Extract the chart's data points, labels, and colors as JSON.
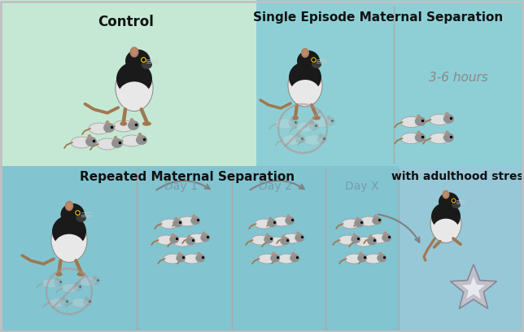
{
  "bg_top_left": "#c5e8d5",
  "bg_top_right": "#8ecfd5",
  "bg_bottom": "#82c4d0",
  "bg_bottom_right": "#96c8d8",
  "title_control": "Control",
  "title_single": "Single Episode Maternal Separation",
  "title_repeated": "Repeated Maternal Separation",
  "title_adulthood": "with adulthood stress",
  "label_hours": "3-6 hours",
  "label_day1": "Day 1",
  "label_day2": "Day 2",
  "label_dayX": "Day X",
  "rat_belly": "#e8e8e8",
  "rat_dark": "#1a1a1a",
  "rat_skin": "#a07850",
  "rat_ear": "#b08060",
  "pup_body": "#e0e0e0",
  "pup_head": "#909090",
  "pup_skin": "#a07850",
  "arrow_color": "#808080",
  "no_symbol_color": "#b09090",
  "figsize": [
    6.44,
    4.08
  ],
  "dpi": 100
}
